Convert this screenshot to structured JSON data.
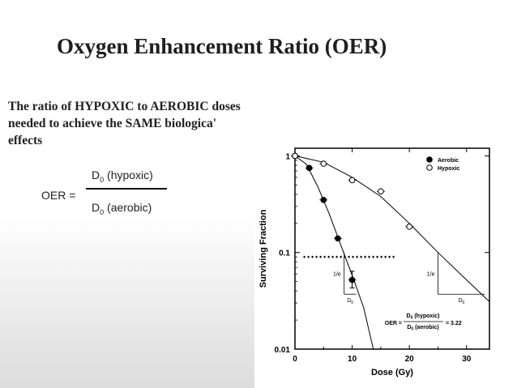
{
  "slide": {
    "title": "Oxygen Enhancement Ratio (OER)",
    "body_lines": [
      "The ratio of HYPOXIC to AEROBIC doses",
      "needed to achieve the SAME biologica'",
      "effects"
    ]
  },
  "formula": {
    "label": "OER =",
    "numerator_prefix": "D",
    "numerator_sub": "0",
    "numerator_text": " (hypoxic)",
    "denominator_prefix": "D",
    "denominator_sub": "0",
    "denominator_text": " (aerobic)"
  },
  "chart_data": {
    "type": "scatter",
    "xlabel": "Dose (Gy)",
    "ylabel": "Surviving Fraction",
    "xlim": [
      0,
      34
    ],
    "ylim": [
      0.01,
      1.2
    ],
    "y_scale": "log",
    "x_ticks": [
      0,
      10,
      20,
      30
    ],
    "y_ticks": [
      {
        "value": 0.01,
        "label": "0.01"
      },
      {
        "value": 0.1,
        "label": "0.1"
      },
      {
        "value": 1,
        "label": "1"
      }
    ],
    "legend_position": "top-right",
    "series": [
      {
        "name": "Aerobic",
        "marker": "filled-circle",
        "points": [
          {
            "x": 0,
            "y": 1.0
          },
          {
            "x": 2.5,
            "y": 0.75
          },
          {
            "x": 5,
            "y": 0.35
          },
          {
            "x": 7.5,
            "y": 0.14
          },
          {
            "x": 10,
            "y": 0.052
          }
        ],
        "curve": [
          {
            "x": 0,
            "y": 1.0
          },
          {
            "x": 2,
            "y": 0.82
          },
          {
            "x": 4,
            "y": 0.48
          },
          {
            "x": 6,
            "y": 0.25
          },
          {
            "x": 8,
            "y": 0.12
          },
          {
            "x": 10,
            "y": 0.058
          },
          {
            "x": 12,
            "y": 0.027
          },
          {
            "x": 13.7,
            "y": 0.01
          }
        ]
      },
      {
        "name": "Hypoxic",
        "marker": "open-circle",
        "points": [
          {
            "x": 0,
            "y": 1.0
          },
          {
            "x": 5,
            "y": 0.83
          },
          {
            "x": 10,
            "y": 0.56
          },
          {
            "x": 15,
            "y": 0.43
          },
          {
            "x": 20,
            "y": 0.185
          }
        ],
        "curve": [
          {
            "x": 0,
            "y": 1.0
          },
          {
            "x": 5,
            "y": 0.86
          },
          {
            "x": 10,
            "y": 0.6
          },
          {
            "x": 15,
            "y": 0.38
          },
          {
            "x": 20,
            "y": 0.2
          },
          {
            "x": 25,
            "y": 0.1
          },
          {
            "x": 30,
            "y": 0.052
          },
          {
            "x": 34,
            "y": 0.031
          }
        ]
      }
    ],
    "reference_line": {
      "y": 0.09,
      "x_range": [
        1.5,
        17.5
      ],
      "style": "dotted"
    },
    "error_bars": [
      {
        "x": 10,
        "y": 0.052,
        "low": 0.043,
        "high": 0.064
      }
    ],
    "triangles": [
      {
        "x_range": [
          8.6,
          10.7
        ],
        "y_range": [
          0.037,
          0.1
        ],
        "slope_label": "1/e",
        "base_label": "D",
        "base_sub": "0"
      },
      {
        "x_range": [
          25,
          33.2
        ],
        "y_range": [
          0.037,
          0.1
        ],
        "slope_label": "1/e",
        "base_label": "D",
        "base_sub": "0"
      }
    ],
    "annotation": {
      "prefix": "OER =",
      "numerator_prefix": "D",
      "numerator_sub": "0",
      "numerator_text": " (hypoxic)",
      "denominator_prefix": "D",
      "denominator_sub": "0",
      "denominator_text": " (aerobic)",
      "result": "= 3.22"
    }
  }
}
